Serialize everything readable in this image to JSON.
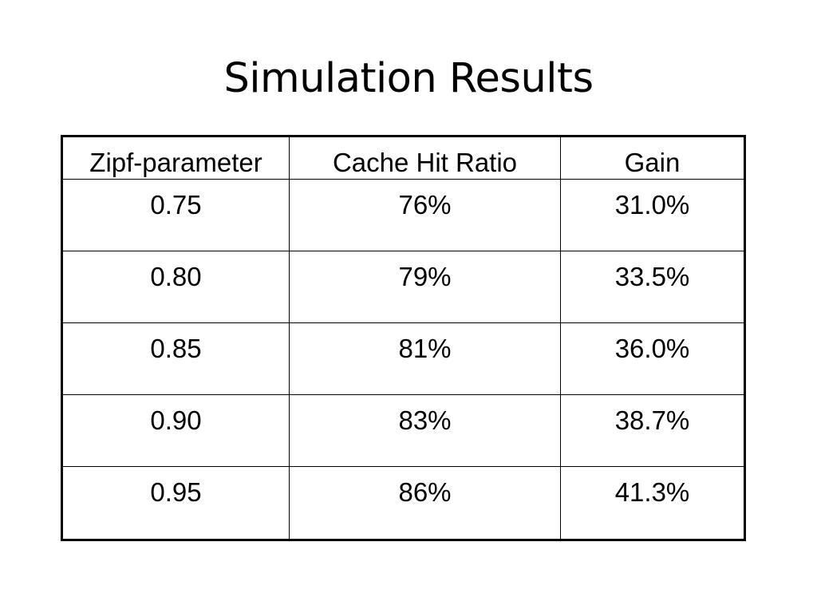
{
  "slide": {
    "title": "Simulation Results"
  },
  "table": {
    "headers": [
      "Zipf-parameter",
      "Cache Hit Ratio",
      "Gain"
    ],
    "rows": [
      [
        "0.75",
        "76%",
        "31.0%"
      ],
      [
        "0.80",
        "79%",
        "33.5%"
      ],
      [
        "0.85",
        "81%",
        "36.0%"
      ],
      [
        "0.90",
        "83%",
        "38.7%"
      ],
      [
        "0.95",
        "86%",
        "41.3%"
      ]
    ]
  }
}
